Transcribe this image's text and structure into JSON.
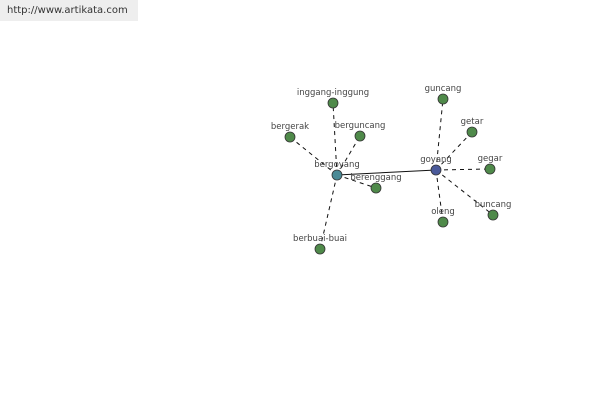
{
  "banner": {
    "text": "http://www.artikata.com"
  },
  "colors": {
    "hub_primary": "#4a5a9a",
    "hub_secondary": "#4a8a96",
    "leaf": "#4f8a4a"
  },
  "graph": {
    "hubs": [
      {
        "id": "bergoyang",
        "label": "bergoyang",
        "color": "#4a8a96"
      },
      {
        "id": "goyang",
        "label": "goyang",
        "color": "#4a5a9a"
      }
    ],
    "hub_link": [
      "bergoyang",
      "goyang"
    ],
    "leaves": [
      {
        "label": "inggang-inggung",
        "hub": "bergoyang"
      },
      {
        "label": "bergerak",
        "hub": "bergoyang"
      },
      {
        "label": "berguncang",
        "hub": "bergoyang"
      },
      {
        "label": "berenggang",
        "hub": "bergoyang"
      },
      {
        "label": "berbuai-buai",
        "hub": "bergoyang"
      },
      {
        "label": "guncang",
        "hub": "goyang"
      },
      {
        "label": "getar",
        "hub": "goyang"
      },
      {
        "label": "gegar",
        "hub": "goyang"
      },
      {
        "label": "buncang",
        "hub": "goyang"
      },
      {
        "label": "oleng",
        "hub": "goyang"
      }
    ]
  }
}
